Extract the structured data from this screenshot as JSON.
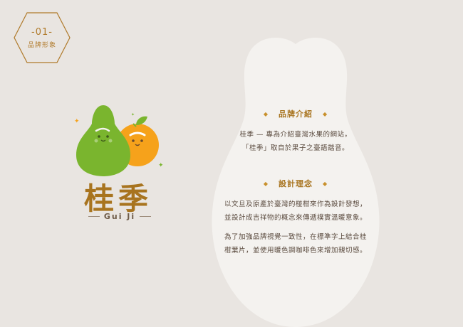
{
  "badge": {
    "number": "-01-",
    "label": "品牌形象"
  },
  "brand": {
    "name_cn": "桂季",
    "name_en": "Gui Ji"
  },
  "sections": [
    {
      "heading": "品牌介紹",
      "paragraphs": [
        [
          "桂季 — 專為介紹臺灣水果的網站，",
          "「桂季」取自於果子之臺語諧音。"
        ]
      ]
    },
    {
      "heading": "設計理念",
      "paragraphs": [
        [
          "以文旦及原產於臺灣的椪柑來作為設計發想，",
          "並設計成吉祥物的概念來傳遞樸實溫暖意象。"
        ],
        [
          "為了加強品牌視覺一致性，在標準字上結合桂",
          "柑葉片，並使用暖色調咖啡色來增加親切感。"
        ]
      ]
    }
  ],
  "colors": {
    "background": "#e9e5e1",
    "pear_bg": "#f4f2ef",
    "accent_brown": "#a8741f",
    "pomelo_green": "#7ab52e",
    "orange": "#f6a21b"
  },
  "icons": [
    "hexagon-badge",
    "sparkle-icon",
    "pomelo-mascot",
    "orange-mascot",
    "diamond-bullet"
  ]
}
